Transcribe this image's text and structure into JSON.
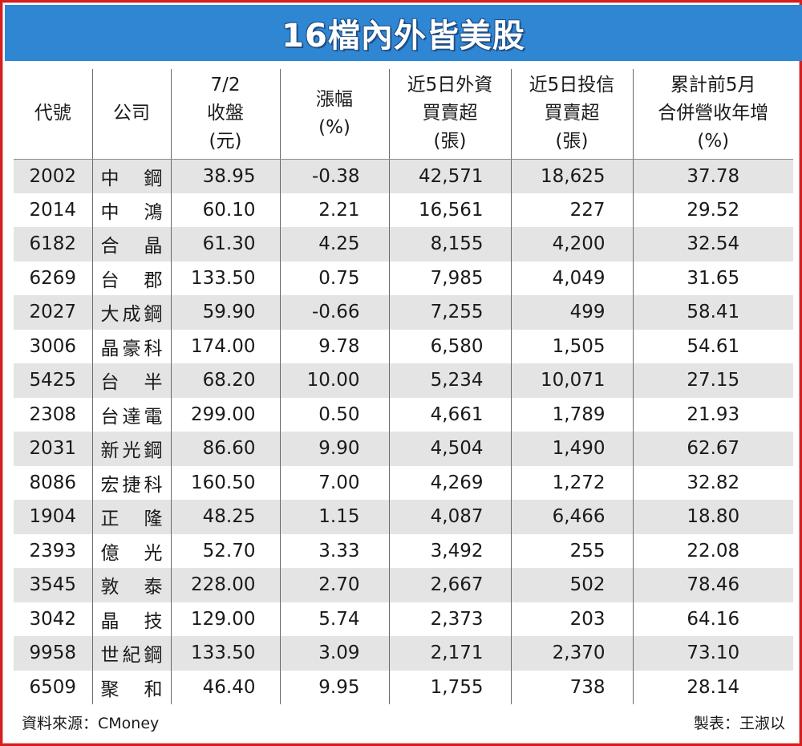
{
  "title": "16檔內外皆美股",
  "colors": {
    "title_bg": "#2f86d3",
    "border": "#d62020",
    "stripe": "#e4e4e4"
  },
  "headers": [
    [
      "代號"
    ],
    [
      "公司"
    ],
    [
      "7/2",
      "收盤",
      "(元)"
    ],
    [
      "漲幅",
      "(%)"
    ],
    [
      "近5日外資",
      "買賣超",
      "(張)"
    ],
    [
      "近5日投信",
      "買賣超",
      "(張)"
    ],
    [
      "累計前5月",
      "合併營收年增",
      "(%)"
    ]
  ],
  "rows": [
    {
      "code": "2002",
      "name": "中　鋼",
      "close": "38.95",
      "change": "-0.38",
      "foreign": "42,571",
      "trust": "18,625",
      "revenue": "37.78"
    },
    {
      "code": "2014",
      "name": "中　鴻",
      "close": "60.10",
      "change": "2.21",
      "foreign": "16,561",
      "trust": "227",
      "revenue": "29.52"
    },
    {
      "code": "6182",
      "name": "合　晶",
      "close": "61.30",
      "change": "4.25",
      "foreign": "8,155",
      "trust": "4,200",
      "revenue": "32.54"
    },
    {
      "code": "6269",
      "name": "台　郡",
      "close": "133.50",
      "change": "0.75",
      "foreign": "7,985",
      "trust": "4,049",
      "revenue": "31.65"
    },
    {
      "code": "2027",
      "name": "大成鋼",
      "close": "59.90",
      "change": "-0.66",
      "foreign": "7,255",
      "trust": "499",
      "revenue": "58.41"
    },
    {
      "code": "3006",
      "name": "晶豪科",
      "close": "174.00",
      "change": "9.78",
      "foreign": "6,580",
      "trust": "1,505",
      "revenue": "54.61"
    },
    {
      "code": "5425",
      "name": "台　半",
      "close": "68.20",
      "change": "10.00",
      "foreign": "5,234",
      "trust": "10,071",
      "revenue": "27.15"
    },
    {
      "code": "2308",
      "name": "台達電",
      "close": "299.00",
      "change": "0.50",
      "foreign": "4,661",
      "trust": "1,789",
      "revenue": "21.93"
    },
    {
      "code": "2031",
      "name": "新光鋼",
      "close": "86.60",
      "change": "9.90",
      "foreign": "4,504",
      "trust": "1,490",
      "revenue": "62.67"
    },
    {
      "code": "8086",
      "name": "宏捷科",
      "close": "160.50",
      "change": "7.00",
      "foreign": "4,269",
      "trust": "1,272",
      "revenue": "32.82"
    },
    {
      "code": "1904",
      "name": "正　隆",
      "close": "48.25",
      "change": "1.15",
      "foreign": "4,087",
      "trust": "6,466",
      "revenue": "18.80"
    },
    {
      "code": "2393",
      "name": "億　光",
      "close": "52.70",
      "change": "3.33",
      "foreign": "3,492",
      "trust": "255",
      "revenue": "22.08"
    },
    {
      "code": "3545",
      "name": "敦　泰",
      "close": "228.00",
      "change": "2.70",
      "foreign": "2,667",
      "trust": "502",
      "revenue": "78.46"
    },
    {
      "code": "3042",
      "name": "晶　技",
      "close": "129.00",
      "change": "5.74",
      "foreign": "2,373",
      "trust": "203",
      "revenue": "64.16"
    },
    {
      "code": "9958",
      "name": "世紀鋼",
      "close": "133.50",
      "change": "3.09",
      "foreign": "2,171",
      "trust": "2,370",
      "revenue": "73.10"
    },
    {
      "code": "6509",
      "name": "聚　和",
      "close": "46.40",
      "change": "9.95",
      "foreign": "1,755",
      "trust": "738",
      "revenue": "28.14"
    }
  ],
  "footer": {
    "source": "資料來源：CMoney",
    "author": "製表：王淑以"
  }
}
